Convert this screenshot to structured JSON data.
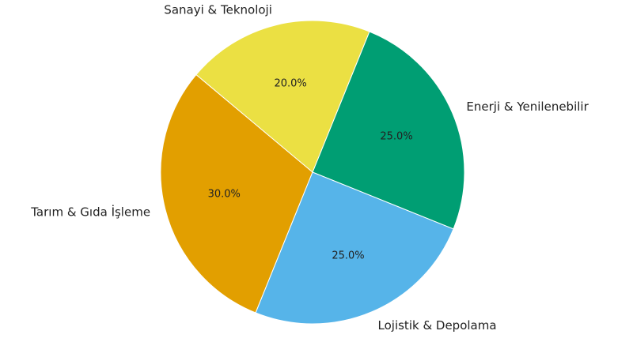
{
  "chart_data": {
    "type": "pie",
    "categories": [
      "Enerji & Yenilenebilir",
      "Sanayi & Teknoloji",
      "Tarım & Gıda İşleme",
      "Lojistik & Depolama"
    ],
    "values": [
      25,
      20,
      30,
      25
    ],
    "value_labels": [
      "25.0%",
      "20.0%",
      "30.0%",
      "25.0%"
    ],
    "colors": [
      "#009e73",
      "#ebe043",
      "#e29f00",
      "#56b4e9"
    ]
  }
}
